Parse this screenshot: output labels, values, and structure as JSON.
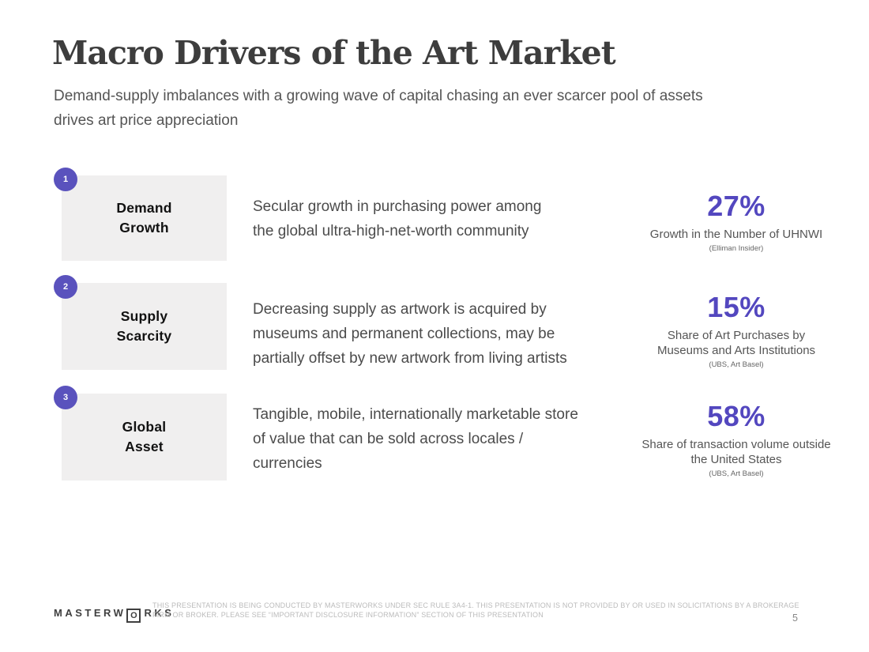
{
  "header": {
    "title": "Macro Drivers of the Art Market",
    "subtitle": "Demand-supply imbalances with a growing wave of capital chasing an ever scarcer pool of assets\ndrives art price appreciation"
  },
  "rows": [
    {
      "number": "1",
      "label": "Demand\nGrowth",
      "description": "Secular growth in purchasing power among\nthe global ultra-high-net-worth community",
      "stat_value": "27%",
      "stat_caption": "Growth in the Number of UHNWI",
      "stat_source": "(Elliman Insider)"
    },
    {
      "number": "2",
      "label": "Supply\nScarcity",
      "description": "Decreasing supply as artwork is acquired by\nmuseums and permanent collections, may be\npartially offset by new artwork from living artists",
      "stat_value": "15%",
      "stat_caption": "Share of Art Purchases by\nMuseums and Arts Institutions",
      "stat_source": "(UBS, Art Basel)"
    },
    {
      "number": "3",
      "label": "Global\nAsset",
      "description": "Tangible, mobile, internationally marketable store\nof value that can be sold across locales /\ncurrencies",
      "stat_value": "58%",
      "stat_caption": "Share of transaction volume outside\nthe United States",
      "stat_source": "(UBS, Art Basel)"
    }
  ],
  "footer": {
    "logo_prefix": "MASTERW",
    "logo_o": "O",
    "logo_suffix": "RKS",
    "disclaimer": "THIS PRESENTATION IS BEING CONDUCTED BY MASTERWORKS UNDER SEC RULE 3A4-1. THIS PRESENTATION IS NOT PROVIDED BY OR USED IN SOLICITATIONS BY A BROKERAGE\nFIRM OR BROKER. PLEASE SEE “IMPORTANT DISCLOSURE INFORMATION” SECTION OF THIS PRESENTATION",
    "page_number": "5"
  },
  "colors": {
    "accent_purple": "#5a52bd",
    "stat_purple": "#5347bf",
    "label_box_gray": "#f0efef"
  }
}
